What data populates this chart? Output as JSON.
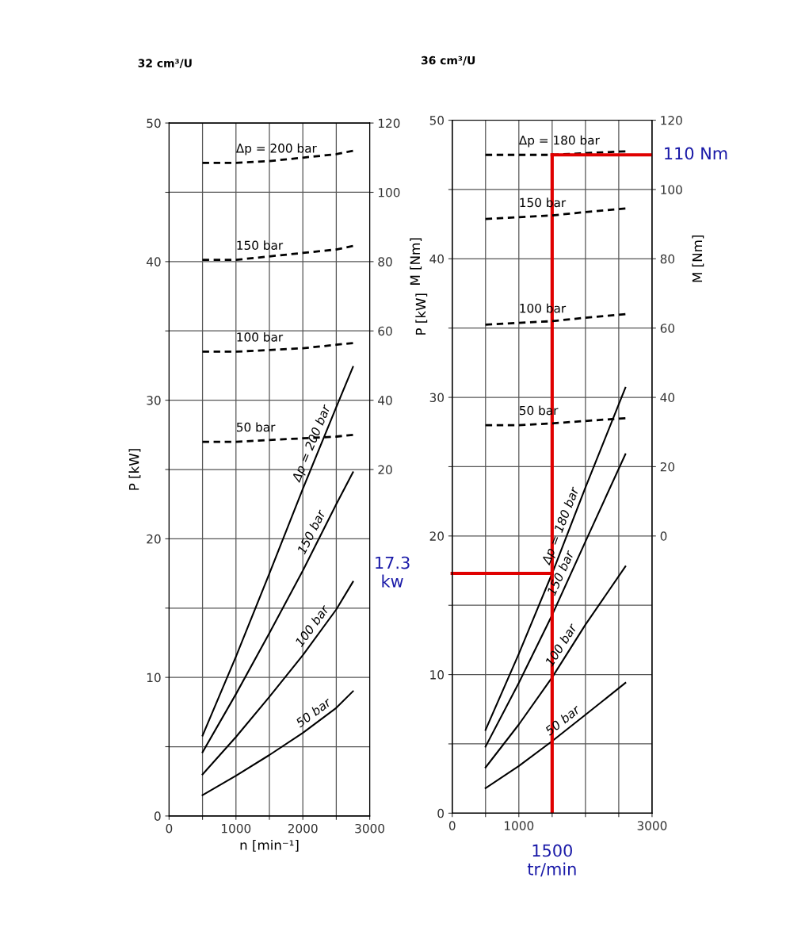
{
  "chart_data": [
    {
      "type": "line",
      "title": "32 cm³/U",
      "xlabel": "n [min⁻¹]",
      "ylabel": "P [kW]",
      "y2label": "M [Nm]",
      "xlim": [
        0,
        3000
      ],
      "xticks": [
        0,
        {
          "value": 500,
          "label": null
        },
        1000,
        {
          "value": 1500,
          "label": null
        },
        2000,
        {
          "value": 2500,
          "label": null
        },
        3000
      ],
      "ylim": [
        0,
        50
      ],
      "yticks": [
        0,
        {
          "value": 5,
          "label": null
        },
        10,
        {
          "value": 15,
          "label": null
        },
        20,
        {
          "value": 25,
          "label": null
        },
        30,
        {
          "value": 35,
          "label": null
        },
        40,
        {
          "value": 45,
          "label": null
        },
        50
      ],
      "y2lim": [
        -80,
        120
      ],
      "y2ticks": [
        20,
        40,
        60,
        80,
        100,
        120
      ],
      "grid": true,
      "legend": false,
      "marker": "none",
      "series": [
        {
          "name": "Δp = 200 bar",
          "color": "#000000",
          "line_style": "solid",
          "axis": "y",
          "x": [
            500,
            1000,
            1500,
            2000,
            2500,
            2750
          ],
          "values": [
            5.8,
            11.5,
            17.5,
            23.6,
            29.5,
            32.4
          ]
        },
        {
          "name": "150 bar",
          "color": "#000000",
          "line_style": "solid",
          "axis": "y",
          "x": [
            500,
            1000,
            1500,
            2000,
            2500,
            2750
          ],
          "values": [
            4.6,
            8.8,
            13.2,
            17.7,
            22.5,
            24.8
          ]
        },
        {
          "name": "100 bar",
          "color": "#000000",
          "line_style": "solid",
          "axis": "y",
          "x": [
            500,
            1000,
            1500,
            2000,
            2500,
            2750
          ],
          "values": [
            3.0,
            5.7,
            8.6,
            11.6,
            14.9,
            16.9
          ]
        },
        {
          "name": "50 bar",
          "color": "#000000",
          "line_style": "solid",
          "axis": "y",
          "x": [
            500,
            1000,
            1500,
            2000,
            2500,
            2750
          ],
          "values": [
            1.5,
            2.9,
            4.4,
            6.0,
            7.8,
            9.0
          ]
        },
        {
          "name": "Δp = 200 bar",
          "color": "#000000",
          "line_style": "dashed",
          "axis": "y2",
          "x": [
            500,
            1000,
            1500,
            2000,
            2500,
            2750
          ],
          "values": [
            108.5,
            108.5,
            109,
            110,
            111,
            112
          ]
        },
        {
          "name": "150 bar",
          "color": "#000000",
          "line_style": "dashed",
          "axis": "y2",
          "x": [
            500,
            1000,
            1500,
            2000,
            2500,
            2750
          ],
          "values": [
            80.5,
            80.5,
            81.5,
            82.5,
            83.5,
            84.5
          ]
        },
        {
          "name": "100 bar",
          "color": "#000000",
          "line_style": "dashed",
          "axis": "y2",
          "x": [
            500,
            1000,
            1500,
            2000,
            2500,
            2750
          ],
          "values": [
            54,
            54,
            54.5,
            55,
            56,
            56.5
          ]
        },
        {
          "name": "50 bar",
          "color": "#000000",
          "line_style": "dashed",
          "axis": "y2",
          "x": [
            500,
            1000,
            1500,
            2000,
            2500,
            2750
          ],
          "values": [
            28,
            28,
            28.5,
            29,
            29.5,
            30
          ]
        }
      ]
    },
    {
      "type": "line",
      "title": "36 cm³/U",
      "ylabel": "P [kW]",
      "y2label": "M [Nm]",
      "xlim": [
        0,
        3000
      ],
      "xticks": [
        0,
        {
          "value": 500,
          "label": null
        },
        1000,
        {
          "value": 1500,
          "label": null
        },
        {
          "value": 2000,
          "label": null
        },
        {
          "value": 2500,
          "label": null
        },
        3000
      ],
      "ylim": [
        0,
        50
      ],
      "yticks": [
        0,
        {
          "value": 5,
          "label": null
        },
        10,
        {
          "value": 15,
          "label": null
        },
        20,
        {
          "value": 25,
          "label": null
        },
        30,
        {
          "value": 35,
          "label": null
        },
        40,
        {
          "value": 45,
          "label": null
        },
        50
      ],
      "y2lim": [
        -80,
        120
      ],
      "y2ticks": [
        0,
        20,
        40,
        60,
        80,
        100,
        120
      ],
      "grid": true,
      "legend": false,
      "marker": "none",
      "series": [
        {
          "name": "Δp = 180 bar",
          "color": "#000000",
          "line_style": "solid",
          "axis": "y",
          "x": [
            500,
            1000,
            1500,
            2000,
            2600
          ],
          "values": [
            6.0,
            11.5,
            17.3,
            23.5,
            30.7
          ]
        },
        {
          "name": "150 bar",
          "color": "#000000",
          "line_style": "solid",
          "axis": "y",
          "x": [
            500,
            1000,
            1500,
            2000,
            2600
          ],
          "values": [
            4.8,
            9.4,
            14.3,
            19.6,
            25.9
          ]
        },
        {
          "name": "100 bar",
          "color": "#000000",
          "line_style": "solid",
          "axis": "y",
          "x": [
            500,
            1000,
            1500,
            2000,
            2600
          ],
          "values": [
            3.3,
            6.4,
            9.8,
            13.6,
            17.8
          ]
        },
        {
          "name": "50 bar",
          "color": "#000000",
          "line_style": "solid",
          "axis": "y",
          "x": [
            500,
            1000,
            1500,
            2000,
            2600
          ],
          "values": [
            1.8,
            3.4,
            5.2,
            7.1,
            9.4
          ]
        },
        {
          "name": "Δp = 180 bar",
          "color": "#000000",
          "line_style": "dashed",
          "axis": "y2",
          "x": [
            500,
            1000,
            1500,
            2000,
            2600
          ],
          "values": [
            110,
            110,
            110,
            110.5,
            111
          ]
        },
        {
          "name": "150 bar",
          "color": "#000000",
          "line_style": "dashed",
          "axis": "y2",
          "x": [
            500,
            1000,
            1500,
            2000,
            2600
          ],
          "values": [
            91.5,
            92,
            92.5,
            93.5,
            94.5
          ]
        },
        {
          "name": "100 bar",
          "color": "#000000",
          "line_style": "dashed",
          "axis": "y2",
          "x": [
            500,
            1000,
            1500,
            2000,
            2600
          ],
          "values": [
            61,
            61.5,
            62,
            63,
            64
          ]
        },
        {
          "name": "50 bar",
          "color": "#000000",
          "line_style": "dashed",
          "axis": "y2",
          "x": [
            500,
            1000,
            1500,
            2000,
            2600
          ],
          "values": [
            32,
            32,
            32.5,
            33.2,
            34
          ]
        }
      ],
      "ref_lines": [
        {
          "axis": "x",
          "value": 1500,
          "label": "1500\ntr/min",
          "color": "#e00000"
        },
        {
          "axis": "y",
          "value": 17.3,
          "label": "17.3\nkw",
          "color": "#e00000"
        },
        {
          "axis": "y2",
          "value": 110,
          "label": "110 Nm",
          "color": "#e00000"
        }
      ]
    }
  ]
}
